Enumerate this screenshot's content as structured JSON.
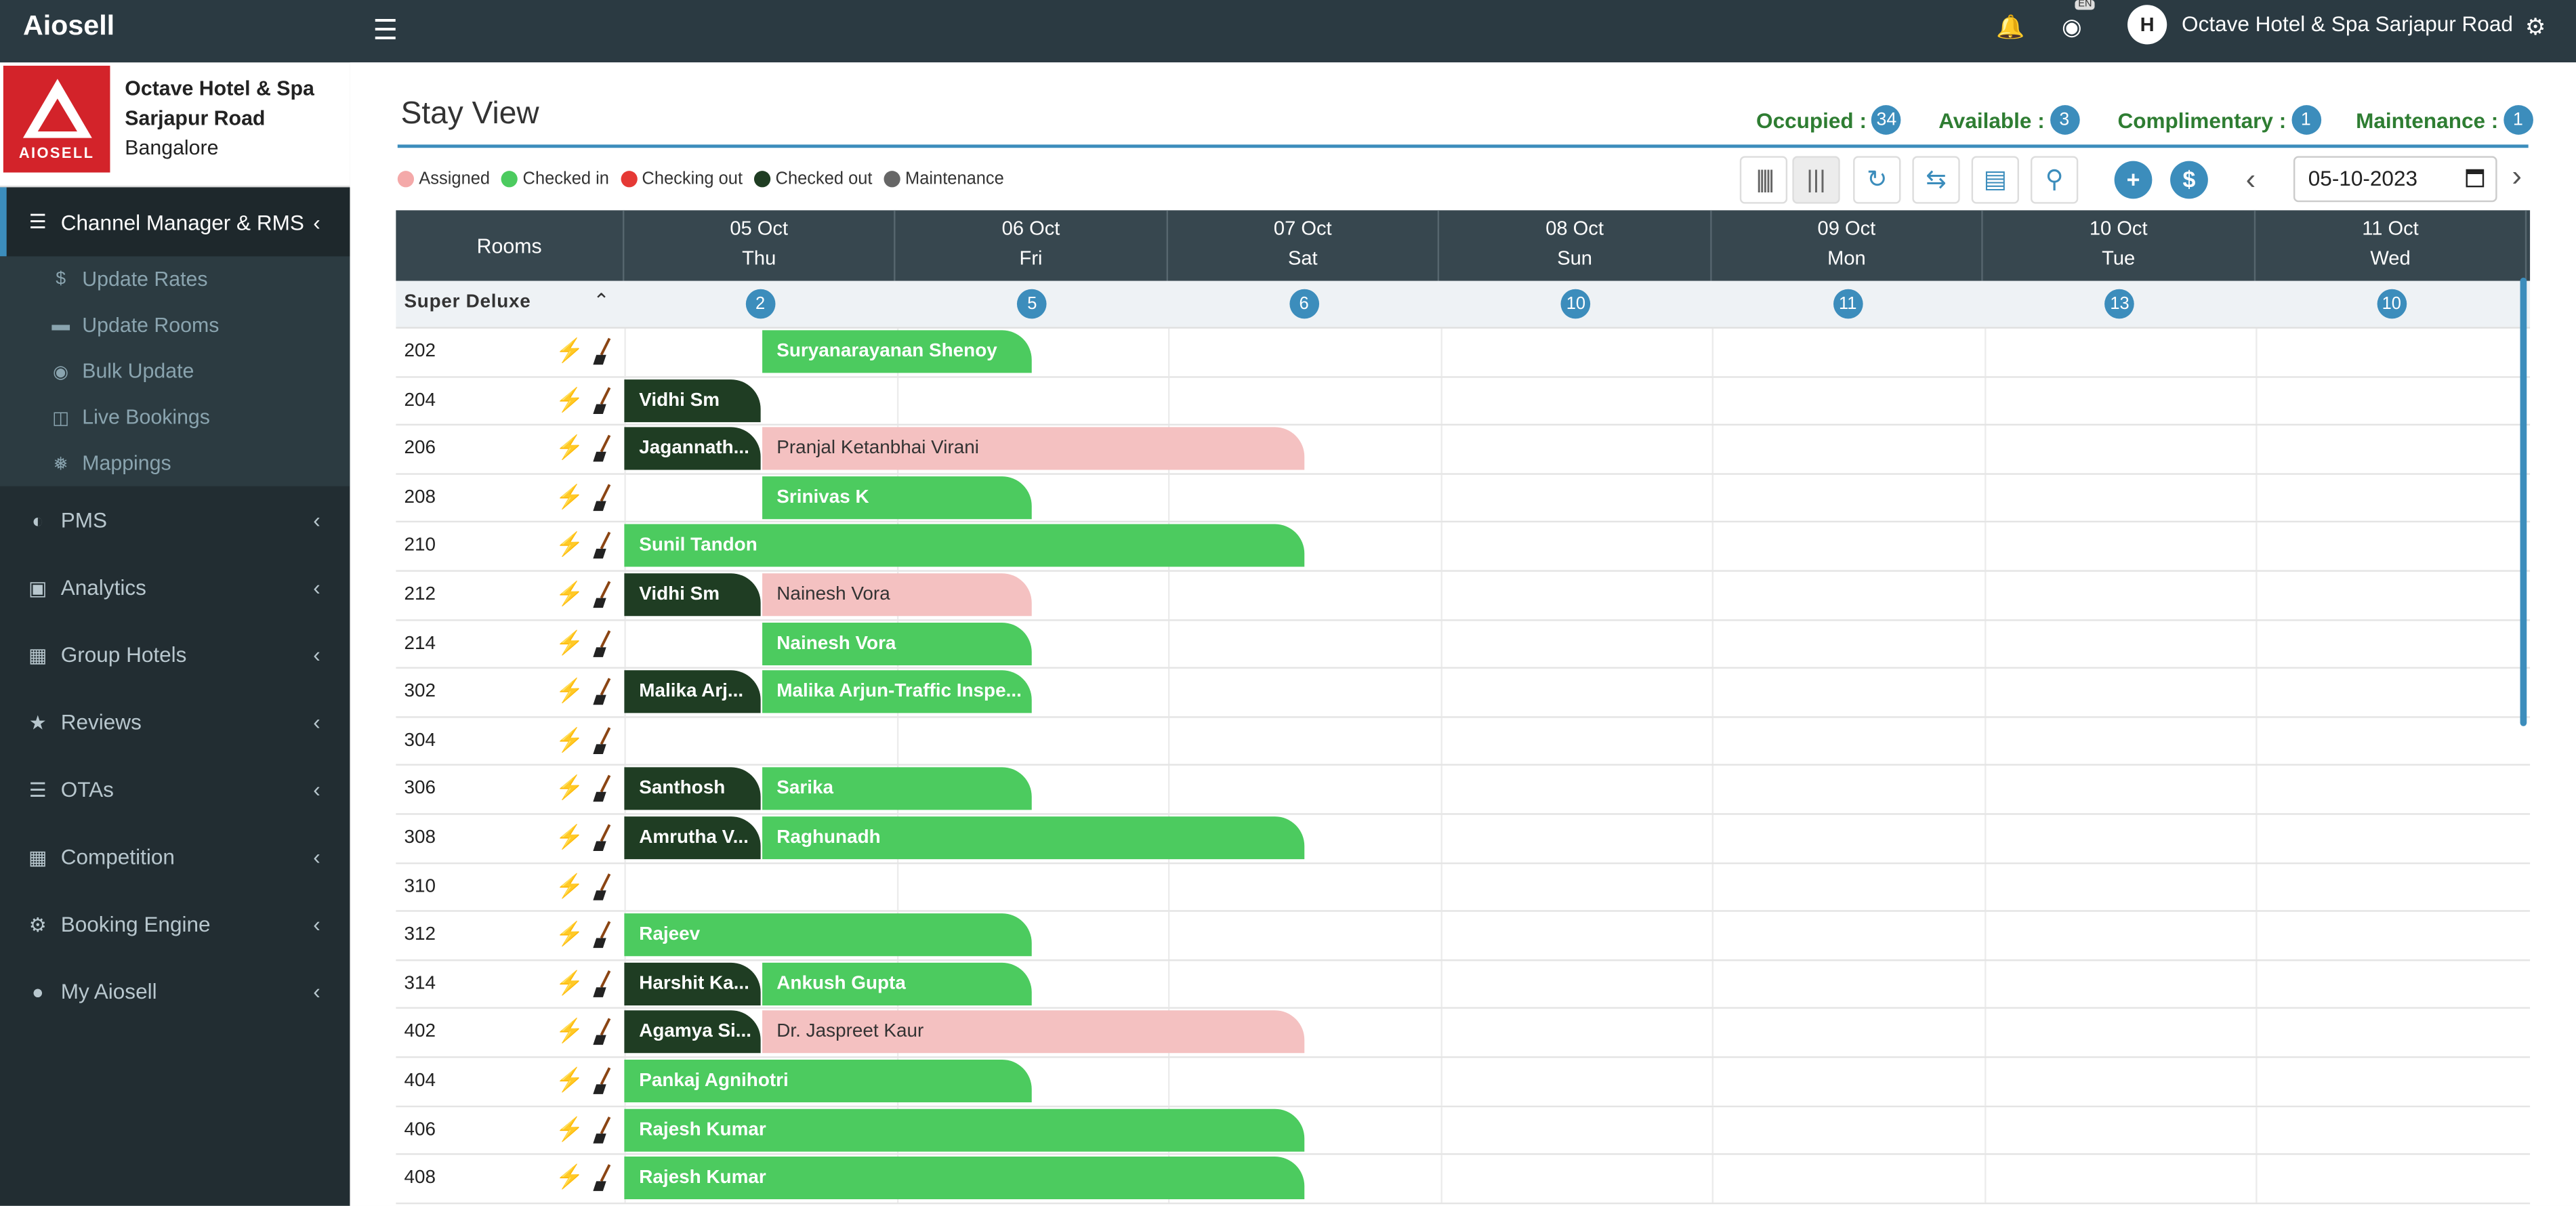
{
  "app": {
    "name": "Aiosell"
  },
  "hotel": {
    "name_line1": "Octave Hotel & Spa",
    "name_line2": "Sarjapur Road",
    "city": "Bangalore",
    "logo_text": "AIOSELL",
    "avatar_initial": "H",
    "top_name": "Octave Hotel & Spa Sarjapur Road",
    "lang_badge": "EN"
  },
  "sidebar": {
    "active": {
      "label": "Channel Manager & RMS",
      "icon": "server-icon"
    },
    "sub_items": [
      {
        "label": "Update Rates",
        "icon": "dollar-icon"
      },
      {
        "label": "Update Rooms",
        "icon": "bed-icon"
      },
      {
        "label": "Bulk Update",
        "icon": "dot-circle-icon"
      },
      {
        "label": "Live Bookings",
        "icon": "columns-icon"
      },
      {
        "label": "Mappings",
        "icon": "snowflake-icon"
      }
    ],
    "items": [
      {
        "label": "PMS",
        "icon": "half-circle-icon"
      },
      {
        "label": "Analytics",
        "icon": "money-icon"
      },
      {
        "label": "Group Hotels",
        "icon": "building-icon"
      },
      {
        "label": "Reviews",
        "icon": "star-icon"
      },
      {
        "label": "OTAs",
        "icon": "list-icon"
      },
      {
        "label": "Competition",
        "icon": "grid-icon"
      },
      {
        "label": "Booking Engine",
        "icon": "gears-icon"
      },
      {
        "label": "My Aiosell",
        "icon": "user-icon"
      }
    ]
  },
  "page": {
    "title": "Stay View",
    "stats": [
      {
        "label": "Occupied :",
        "value": "34"
      },
      {
        "label": "Available :",
        "value": "3"
      },
      {
        "label": "Complimentary :",
        "value": "1"
      },
      {
        "label": "Maintenance :",
        "value": "1"
      }
    ],
    "legend": [
      {
        "label": "Assigned",
        "color": "#f4a9a9"
      },
      {
        "label": "Checked in",
        "color": "#4ccb5f"
      },
      {
        "label": "Checking out",
        "color": "#e53935"
      },
      {
        "label": "Checked out",
        "color": "#1f3d23"
      },
      {
        "label": "Maintenance",
        "color": "#666666"
      }
    ],
    "date_value": "05-10-2023"
  },
  "grid": {
    "rooms_header": "Rooms",
    "days": [
      {
        "date": "05 Oct",
        "dow": "Thu",
        "avail": "2"
      },
      {
        "date": "06 Oct",
        "dow": "Fri",
        "avail": "5"
      },
      {
        "date": "07 Oct",
        "dow": "Sat",
        "avail": "6"
      },
      {
        "date": "08 Oct",
        "dow": "Sun",
        "avail": "10"
      },
      {
        "date": "09 Oct",
        "dow": "Mon",
        "avail": "11"
      },
      {
        "date": "10 Oct",
        "dow": "Tue",
        "avail": "13"
      },
      {
        "date": "11 Oct",
        "dow": "Wed",
        "avail": "10"
      }
    ],
    "category": "Super Deluxe",
    "rooms": [
      {
        "no": "202",
        "bolt": "red",
        "bookings": [
          {
            "guest": "Suryanarayanan Shenoy",
            "status": "in",
            "start": 0.5,
            "end": 1.5
          }
        ]
      },
      {
        "no": "204",
        "bolt": "red",
        "bookings": [
          {
            "guest": "Vidhi Sm",
            "status": "out",
            "start": 0,
            "end": 0.5
          }
        ]
      },
      {
        "no": "206",
        "bolt": "red",
        "bookings": [
          {
            "guest": "Jagannath...",
            "status": "out",
            "start": 0,
            "end": 0.5
          },
          {
            "guest": "Pranjal Ketanbhai Virani",
            "status": "asg",
            "start": 0.5,
            "end": 2.5
          }
        ]
      },
      {
        "no": "208",
        "bolt": "red",
        "bookings": [
          {
            "guest": "Srinivas K",
            "status": "in",
            "start": 0.5,
            "end": 1.5
          }
        ]
      },
      {
        "no": "210",
        "bolt": "green",
        "bookings": [
          {
            "guest": "Sunil Tandon",
            "status": "in",
            "start": 0,
            "end": 2.5
          }
        ]
      },
      {
        "no": "212",
        "bolt": "red",
        "bookings": [
          {
            "guest": "Vidhi Sm",
            "status": "out",
            "start": 0,
            "end": 0.5
          },
          {
            "guest": "Nainesh Vora",
            "status": "asg",
            "start": 0.5,
            "end": 1.5
          }
        ]
      },
      {
        "no": "214",
        "bolt": "red",
        "bookings": [
          {
            "guest": "Nainesh Vora",
            "status": "in",
            "start": 0.5,
            "end": 1.5
          }
        ]
      },
      {
        "no": "302",
        "bolt": "red",
        "bookings": [
          {
            "guest": "Malika Arj...",
            "status": "out",
            "start": 0,
            "end": 0.5
          },
          {
            "guest": "Malika Arjun-Traffic Inspe...",
            "status": "in",
            "start": 0.5,
            "end": 1.5
          }
        ]
      },
      {
        "no": "304",
        "bolt": "red",
        "bookings": []
      },
      {
        "no": "306",
        "bolt": "red",
        "bookings": [
          {
            "guest": "Santhosh",
            "status": "out",
            "start": 0,
            "end": 0.5
          },
          {
            "guest": "Sarika",
            "status": "in",
            "start": 0.5,
            "end": 1.5
          }
        ]
      },
      {
        "no": "308",
        "bolt": "red",
        "bookings": [
          {
            "guest": "Amrutha V...",
            "status": "out",
            "start": 0,
            "end": 0.5
          },
          {
            "guest": "Raghunadh",
            "status": "in",
            "start": 0.5,
            "end": 2.5
          }
        ]
      },
      {
        "no": "310",
        "bolt": "red",
        "bookings": []
      },
      {
        "no": "312",
        "bolt": "green",
        "bookings": [
          {
            "guest": "Rajeev",
            "status": "in",
            "start": 0,
            "end": 1.5
          }
        ]
      },
      {
        "no": "314",
        "bolt": "green",
        "bookings": [
          {
            "guest": "Harshit Ka...",
            "status": "out",
            "start": 0,
            "end": 0.5
          },
          {
            "guest": "Ankush Gupta",
            "status": "in",
            "start": 0.5,
            "end": 1.5
          }
        ]
      },
      {
        "no": "402",
        "bolt": "red",
        "bookings": [
          {
            "guest": "Agamya Si...",
            "status": "out",
            "start": 0,
            "end": 0.5
          },
          {
            "guest": "Dr. Jaspreet Kaur",
            "status": "asg",
            "start": 0.5,
            "end": 2.5
          }
        ]
      },
      {
        "no": "404",
        "bolt": "red",
        "bookings": [
          {
            "guest": "Pankaj Agnihotri",
            "status": "in",
            "start": 0,
            "end": 1.5
          }
        ]
      },
      {
        "no": "406",
        "bolt": "red",
        "bookings": [
          {
            "guest": "Rajesh Kumar",
            "status": "in",
            "start": 0,
            "end": 2.5
          }
        ]
      },
      {
        "no": "408",
        "bolt": "red",
        "bookings": [
          {
            "guest": "Rajesh Kumar",
            "status": "in",
            "start": 0,
            "end": 2.5
          }
        ]
      }
    ]
  }
}
